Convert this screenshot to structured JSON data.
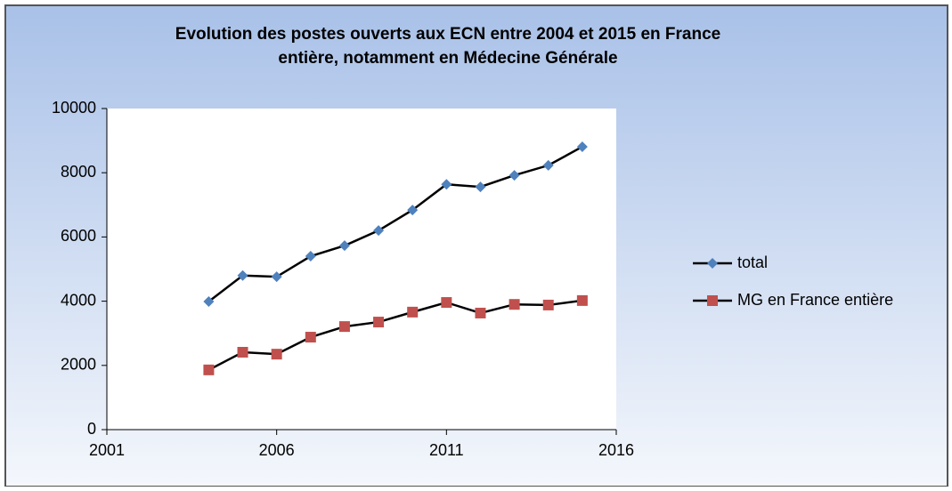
{
  "chart_data": {
    "type": "line",
    "title": [
      "Evolution des postes ouverts aux ECN entre 2004 et 2015  en France",
      "entière, notamment en Médecine Générale"
    ],
    "x": [
      2004,
      2005,
      2006,
      2007,
      2008,
      2009,
      2010,
      2011,
      2012,
      2013,
      2014,
      2015
    ],
    "series": [
      {
        "name": "total",
        "color": "#4f81bd",
        "marker": "diamond",
        "values": [
          3990,
          4800,
          4760,
          5400,
          5730,
          6200,
          6840,
          7640,
          7560,
          7920,
          8230,
          8810
        ]
      },
      {
        "name": "MG en France entière",
        "color": "#c0504d",
        "marker": "square",
        "values": [
          1860,
          2410,
          2350,
          2880,
          3210,
          3350,
          3660,
          3960,
          3630,
          3900,
          3880,
          4020
        ]
      }
    ],
    "line_color": "#000000",
    "xlim": [
      2001,
      2016
    ],
    "xticks": [
      2001,
      2006,
      2011,
      2016
    ],
    "ylim": [
      0,
      10000
    ],
    "yticks": [
      0,
      2000,
      4000,
      6000,
      8000,
      10000
    ],
    "legend": "right"
  }
}
